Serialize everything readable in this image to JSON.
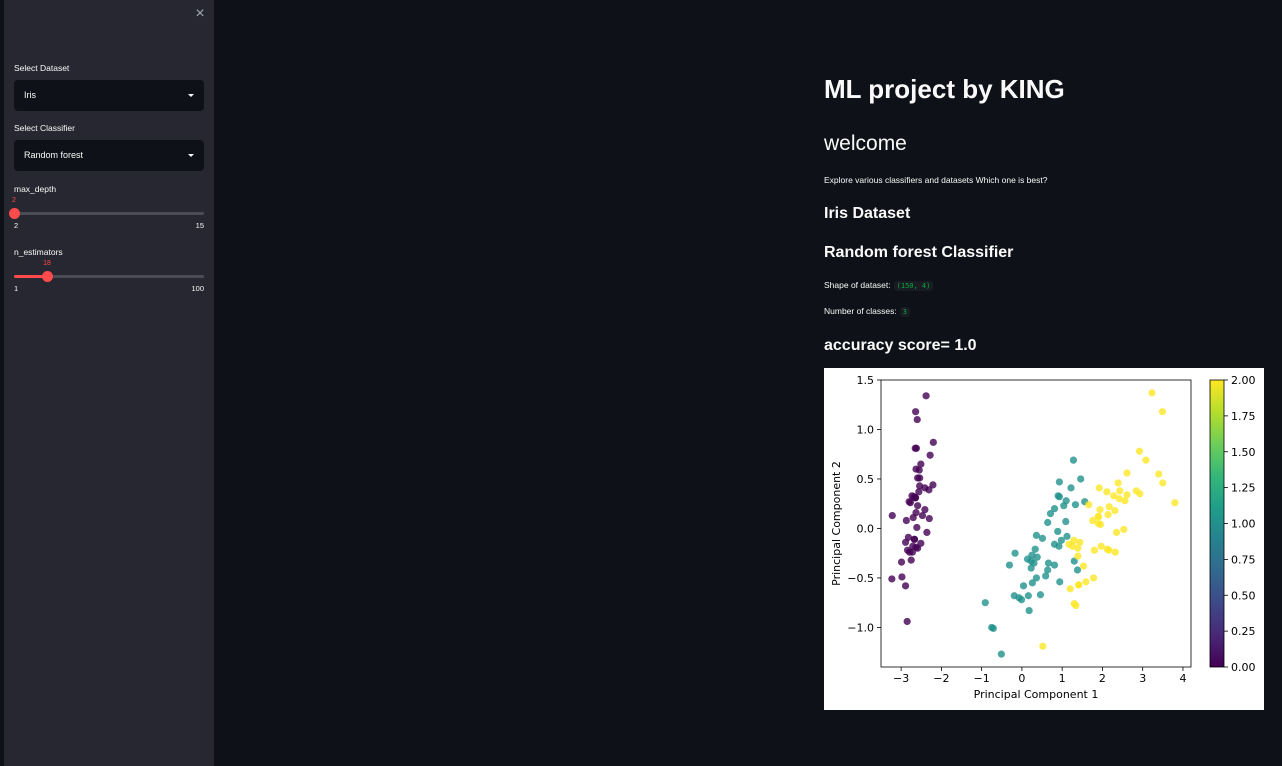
{
  "sidebar": {
    "close_icon": "×",
    "dataset_label": "Select Dataset",
    "dataset_value": "Iris",
    "classifier_label": "Select Classifier",
    "classifier_value": "Random forest",
    "max_depth": {
      "label": "max_depth",
      "value": "2",
      "min": "2",
      "max": "15",
      "fraction": 0.0
    },
    "n_estimators": {
      "label": "n_estimators",
      "value": "18",
      "min": "1",
      "max": "100",
      "fraction": 0.1717
    }
  },
  "main": {
    "title": "ML project by KING",
    "subtitle": "welcome",
    "intro": "Explore various classifiers and datasets Which one is best?",
    "dataset_heading": "Iris Dataset",
    "classifier_heading": "Random forest Classifier",
    "shape_label": "Shape of dataset:",
    "shape_value": "(150, 4)",
    "classes_label": "Number of classes:",
    "classes_value": "3",
    "accuracy": "accuracy score= 1.0"
  },
  "chart_data": {
    "type": "scatter",
    "xlabel": "Principal Component 1",
    "ylabel": "Principal Component 2",
    "xlim": [
      -3.5,
      4.2
    ],
    "ylim": [
      -1.4,
      1.5
    ],
    "xticks": [
      "−3",
      "−2",
      "−1",
      "0",
      "1",
      "2",
      "3",
      "4"
    ],
    "yticks": [
      "−1.0",
      "−0.5",
      "0.0",
      "0.5",
      "1.0",
      "1.5"
    ],
    "colorbar": {
      "min": 0,
      "max": 2,
      "ticks": [
        "0.00",
        "0.25",
        "0.50",
        "0.75",
        "1.00",
        "1.25",
        "1.50",
        "1.75",
        "2.00"
      ],
      "colormap": "viridis"
    },
    "colors": {
      "class0": "#440154",
      "class1": "#21918c",
      "class2": "#fde725"
    },
    "series": [
      {
        "class": 0,
        "points": [
          [
            -2.68,
            0.32
          ],
          [
            -2.71,
            -0.18
          ],
          [
            -2.89,
            -0.14
          ],
          [
            -2.75,
            -0.32
          ],
          [
            -2.73,
            0.33
          ],
          [
            -2.28,
            0.74
          ],
          [
            -2.82,
            -0.09
          ],
          [
            -2.63,
            0.16
          ],
          [
            -2.89,
            -0.58
          ],
          [
            -2.67,
            -0.11
          ],
          [
            -2.51,
            0.65
          ],
          [
            -2.61,
            0.01
          ],
          [
            -2.79,
            -0.24
          ],
          [
            -3.23,
            -0.51
          ],
          [
            -2.64,
            1.18
          ],
          [
            -2.38,
            1.34
          ],
          [
            -2.62,
            0.81
          ],
          [
            -2.65,
            0.31
          ],
          [
            -2.2,
            0.87
          ],
          [
            -2.59,
            0.51
          ],
          [
            -2.31,
            0.39
          ],
          [
            -2.54,
            0.43
          ],
          [
            -3.22,
            0.13
          ],
          [
            -2.3,
            0.1
          ],
          [
            -2.36,
            -0.04
          ],
          [
            -2.51,
            -0.15
          ],
          [
            -2.47,
            0.13
          ],
          [
            -2.56,
            0.37
          ],
          [
            -2.64,
            0.31
          ],
          [
            -2.63,
            -0.19
          ],
          [
            -2.59,
            -0.2
          ],
          [
            -2.41,
            0.41
          ],
          [
            -2.65,
            0.81
          ],
          [
            -2.6,
            1.1
          ],
          [
            -2.67,
            -0.11
          ],
          [
            -2.87,
            0.08
          ],
          [
            -2.63,
            0.6
          ],
          [
            -2.8,
            0.27
          ],
          [
            -2.98,
            -0.49
          ],
          [
            -2.59,
            0.23
          ],
          [
            -2.77,
            0.26
          ],
          [
            -2.85,
            -0.94
          ],
          [
            -2.99,
            -0.34
          ],
          [
            -2.41,
            0.19
          ],
          [
            -2.21,
            0.44
          ],
          [
            -2.72,
            -0.24
          ],
          [
            -2.54,
            0.51
          ],
          [
            -2.84,
            -0.22
          ],
          [
            -2.55,
            0.59
          ],
          [
            -2.7,
            0.11
          ]
        ]
      },
      {
        "class": 1,
        "points": [
          [
            1.28,
            0.69
          ],
          [
            0.93,
            0.32
          ],
          [
            1.46,
            0.5
          ],
          [
            0.18,
            -0.83
          ],
          [
            1.09,
            0.07
          ],
          [
            0.64,
            -0.42
          ],
          [
            1.1,
            0.28
          ],
          [
            -0.75,
            -1.0
          ],
          [
            1.04,
            0.23
          ],
          [
            -0.01,
            -0.72
          ],
          [
            -0.51,
            -1.27
          ],
          [
            0.51,
            -0.1
          ],
          [
            0.26,
            -0.55
          ],
          [
            0.98,
            -0.12
          ],
          [
            -0.17,
            -0.25
          ],
          [
            0.93,
            0.47
          ],
          [
            0.66,
            -0.35
          ],
          [
            0.23,
            -0.33
          ],
          [
            0.94,
            -0.54
          ],
          [
            0.04,
            -0.58
          ],
          [
            1.12,
            -0.08
          ],
          [
            0.36,
            -0.07
          ],
          [
            1.3,
            -0.33
          ],
          [
            0.92,
            -0.18
          ],
          [
            0.71,
            0.15
          ],
          [
            0.9,
            0.33
          ],
          [
            1.33,
            0.24
          ],
          [
            1.56,
            0.27
          ],
          [
            0.81,
            -0.16
          ],
          [
            -0.31,
            -0.37
          ],
          [
            -0.07,
            -0.7
          ],
          [
            -0.19,
            -0.68
          ],
          [
            0.14,
            -0.31
          ],
          [
            1.38,
            -0.42
          ],
          [
            0.59,
            -0.48
          ],
          [
            0.81,
            0.2
          ],
          [
            1.22,
            0.41
          ],
          [
            0.81,
            -0.37
          ],
          [
            0.25,
            -0.27
          ],
          [
            0.16,
            -0.68
          ],
          [
            0.46,
            -0.67
          ],
          [
            0.89,
            -0.03
          ],
          [
            0.23,
            -0.4
          ],
          [
            -0.71,
            -1.01
          ],
          [
            0.36,
            -0.5
          ],
          [
            0.33,
            -0.21
          ],
          [
            0.38,
            -0.29
          ],
          [
            0.64,
            0.06
          ],
          [
            -0.91,
            -0.75
          ],
          [
            0.3,
            -0.35
          ]
        ]
      },
      {
        "class": 2,
        "points": [
          [
            2.53,
            -0.01
          ],
          [
            1.41,
            -0.57
          ],
          [
            2.61,
            0.34
          ],
          [
            1.97,
            -0.18
          ],
          [
            2.35,
            -0.04
          ],
          [
            3.4,
            0.55
          ],
          [
            0.52,
            -1.19
          ],
          [
            2.93,
            0.35
          ],
          [
            2.32,
            -0.24
          ],
          [
            2.92,
            0.78
          ],
          [
            1.66,
            0.24
          ],
          [
            1.8,
            -0.22
          ],
          [
            2.17,
            0.22
          ],
          [
            1.34,
            -0.78
          ],
          [
            1.59,
            -0.54
          ],
          [
            1.9,
            0.12
          ],
          [
            1.95,
            0.04
          ],
          [
            3.49,
            1.18
          ],
          [
            3.8,
            0.26
          ],
          [
            1.3,
            -0.76
          ],
          [
            2.43,
            0.38
          ],
          [
            1.2,
            -0.61
          ],
          [
            3.5,
            0.46
          ],
          [
            1.39,
            -0.2
          ],
          [
            2.28,
            0.33
          ],
          [
            2.61,
            0.56
          ],
          [
            1.26,
            -0.18
          ],
          [
            1.29,
            -0.12
          ],
          [
            2.12,
            -0.21
          ],
          [
            2.39,
            0.46
          ],
          [
            2.84,
            0.38
          ],
          [
            3.23,
            1.37
          ],
          [
            2.16,
            -0.22
          ],
          [
            1.44,
            -0.14
          ],
          [
            1.78,
            -0.5
          ],
          [
            3.08,
            0.69
          ],
          [
            2.14,
            0.14
          ],
          [
            1.9,
            0.05
          ],
          [
            1.17,
            -0.16
          ],
          [
            2.11,
            0.37
          ],
          [
            2.31,
            0.18
          ],
          [
            1.92,
            0.41
          ],
          [
            1.41,
            -0.57
          ],
          [
            2.56,
            0.28
          ],
          [
            2.42,
            0.3
          ],
          [
            1.94,
            0.19
          ],
          [
            1.53,
            -0.38
          ],
          [
            1.76,
            0.08
          ],
          [
            1.9,
            0.12
          ],
          [
            1.39,
            -0.28
          ]
        ]
      }
    ]
  }
}
